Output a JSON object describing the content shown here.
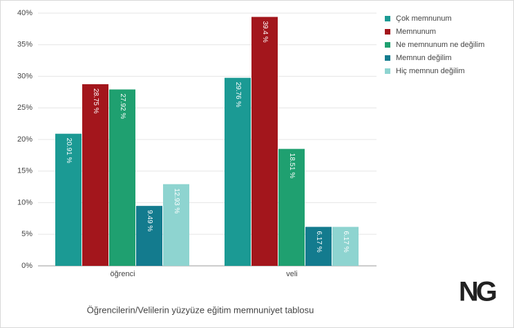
{
  "chart_data": {
    "type": "bar",
    "title": "Öğrencilerin/Velilerin yüzyüze eğitim memnuniyet tablosu",
    "logo": "NG",
    "categories": [
      "öğrenci",
      "veli"
    ],
    "series": [
      {
        "name": "Çok memnunum",
        "color": "#1b9a94",
        "values": [
          20.91,
          29.76
        ],
        "value_labels": [
          "20.91 %",
          "29.76 %"
        ]
      },
      {
        "name": "Memnunum",
        "color": "#a3161c",
        "values": [
          28.75,
          39.4
        ],
        "value_labels": [
          "28.75 %",
          "39.4 %"
        ]
      },
      {
        "name": "Ne memnunum ne değilim",
        "color": "#1fa070",
        "values": [
          27.92,
          18.51
        ],
        "value_labels": [
          "27.92 %",
          "18.51 %"
        ]
      },
      {
        "name": "Memnun değilim",
        "color": "#137b8e",
        "values": [
          9.49,
          6.17
        ],
        "value_labels": [
          "9.49 %",
          "6.17 %"
        ]
      },
      {
        "name": "Hiç memnun değilim",
        "color": "#8ed4d0",
        "values": [
          12.93,
          6.17
        ],
        "value_labels": [
          "12.93 %",
          "6.17 %"
        ]
      }
    ],
    "ylim": [
      0,
      40
    ],
    "yticks": [
      {
        "value": 0,
        "label": "0%"
      },
      {
        "value": 5,
        "label": "5%"
      },
      {
        "value": 10,
        "label": "10%"
      },
      {
        "value": 15,
        "label": "15%"
      },
      {
        "value": 20,
        "label": "20%"
      },
      {
        "value": 25,
        "label": "25%"
      },
      {
        "value": 30,
        "label": "30%"
      },
      {
        "value": 35,
        "label": "35%"
      },
      {
        "value": 40,
        "label": "40%"
      }
    ],
    "grid": true,
    "legend": "right"
  }
}
